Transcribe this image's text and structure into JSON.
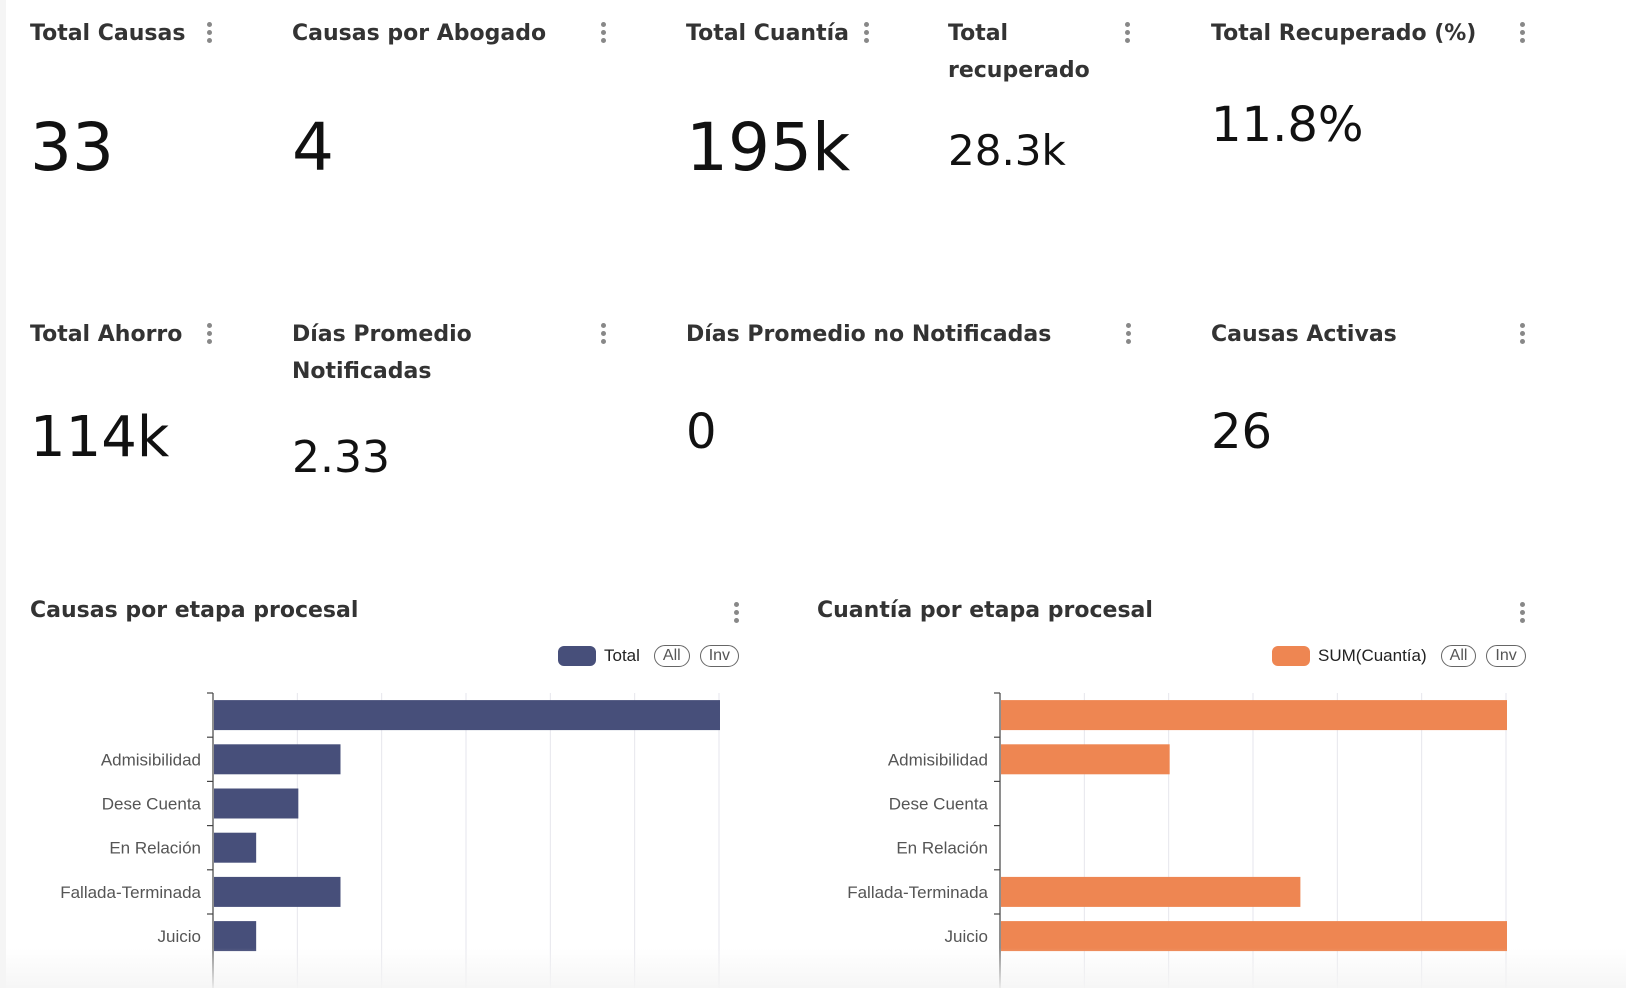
{
  "metrics": [
    {
      "title": "Total Causas",
      "value": "33"
    },
    {
      "title": "Causas por Abogado",
      "value": "4"
    },
    {
      "title": "Total Cuantía",
      "value": "195k"
    },
    {
      "title": "Total recuperado",
      "value": "28.3k"
    },
    {
      "title": "Total Recuperado (%)",
      "value": "11.8%"
    },
    {
      "title": "Total Ahorro",
      "value": "114k"
    },
    {
      "title": "Días Promedio Notificadas",
      "value": "2.33"
    },
    {
      "title": "Días Promedio no Notificadas",
      "value": "0"
    },
    {
      "title": "Causas Activas",
      "value": "26"
    }
  ],
  "chart_data": [
    {
      "type": "bar",
      "orientation": "horizontal",
      "title": "Causas por etapa procesal",
      "categories": [
        "",
        "Admisibilidad",
        "Dese Cuenta",
        "En Relación",
        "Fallada-Terminada",
        "Juicio"
      ],
      "series": [
        {
          "name": "Total",
          "values": [
            12,
            3,
            2,
            1,
            3,
            1
          ]
        }
      ],
      "color": "#474f7a",
      "xlim": [
        0,
        12
      ],
      "grid": true,
      "legend_position": "top-right",
      "legend_buttons": [
        "All",
        "Inv"
      ]
    },
    {
      "type": "bar",
      "orientation": "horizontal",
      "title": "Cuantía por etapa procesal",
      "categories": [
        "",
        "Admisibilidad",
        "Dese Cuenta",
        "En Relación",
        "Fallada-Terminada",
        "Juicio"
      ],
      "series": [
        {
          "name": "SUM(Cuantía)",
          "values": [
            60000,
            20000,
            0,
            0,
            35500,
            60000
          ]
        }
      ],
      "color": "#ee8652",
      "xlim": [
        0,
        60000
      ],
      "grid": true,
      "legend_position": "top-right",
      "legend_buttons": [
        "All",
        "Inv"
      ]
    }
  ]
}
